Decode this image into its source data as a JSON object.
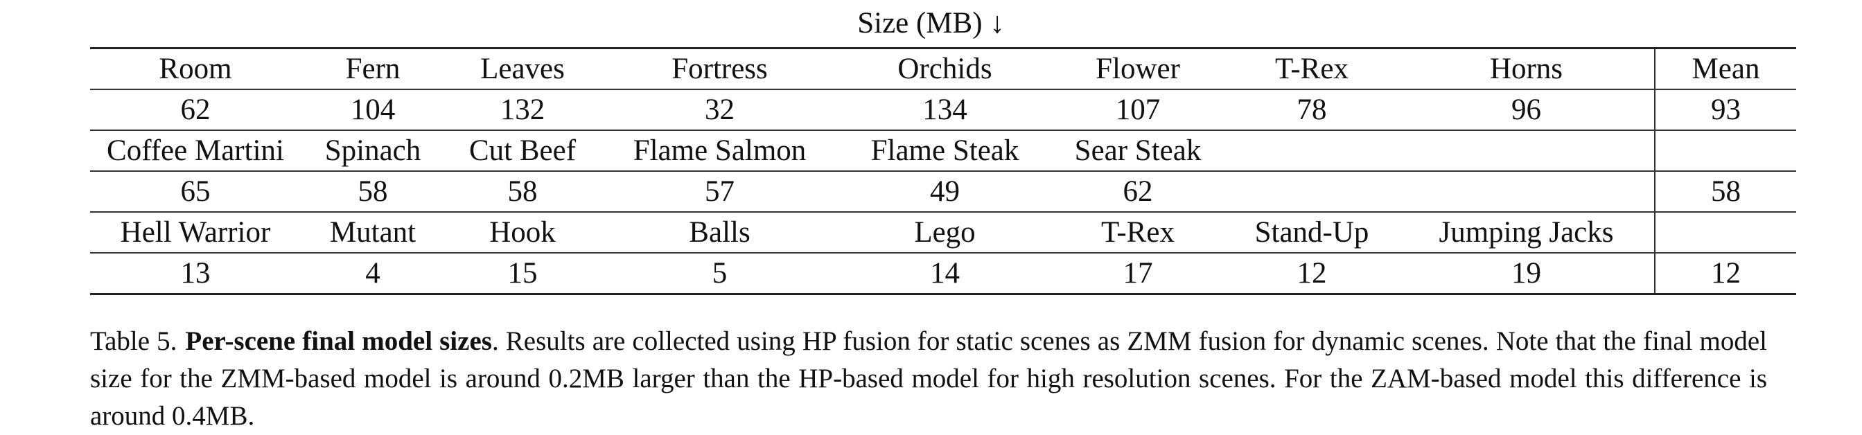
{
  "table": {
    "title": "Size (MB) ↓",
    "groups": [
      {
        "scenes": [
          "Room",
          "Fern",
          "Leaves",
          "Fortress",
          "Orchids",
          "Flower",
          "T-Rex",
          "Horns",
          "Mean"
        ],
        "sizes": [
          "62",
          "104",
          "132",
          "32",
          "134",
          "107",
          "78",
          "96",
          "93"
        ]
      },
      {
        "scenes": [
          "Coffee Martini",
          "Spinach",
          "Cut Beef",
          "Flame Salmon",
          "Flame Steak",
          "Sear Steak",
          "",
          "",
          ""
        ],
        "sizes": [
          "65",
          "58",
          "58",
          "57",
          "49",
          "62",
          "",
          "",
          "58"
        ]
      },
      {
        "scenes": [
          "Hell Warrior",
          "Mutant",
          "Hook",
          "Balls",
          "Lego",
          "T-Rex",
          "Stand-Up",
          "Jumping Jacks",
          ""
        ],
        "sizes": [
          "13",
          "4",
          "15",
          "5",
          "14",
          "17",
          "12",
          "19",
          "12"
        ]
      }
    ]
  },
  "caption": {
    "label": "Table 5.",
    "bold": "Per-scene final model sizes",
    "text": ". Results are collected using HP fusion for static scenes as ZMM fusion for dynamic scenes. Note that the final model size for the ZMM-based model is around 0.2MB larger than the HP-based model for high resolution scenes. For the ZAM-based model this difference is around 0.4MB."
  }
}
